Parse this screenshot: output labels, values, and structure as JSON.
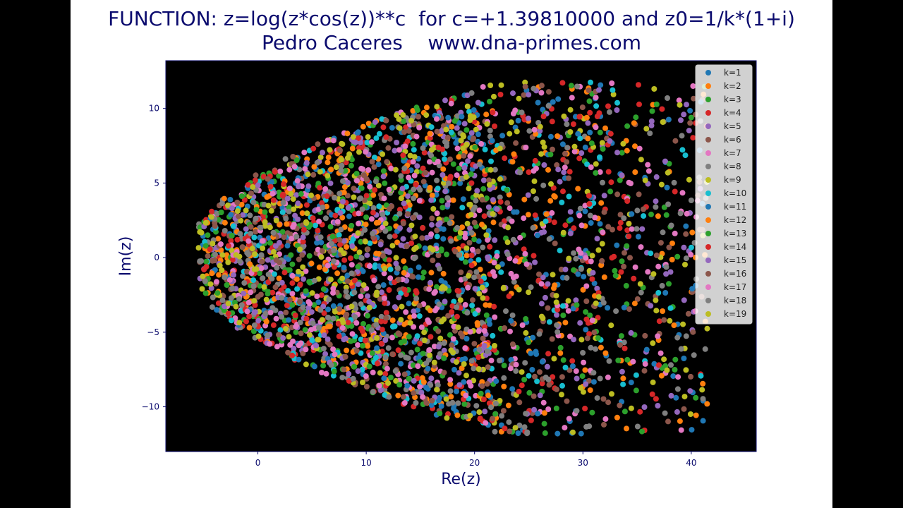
{
  "header": {
    "line1": "FUNCTION: z=log(z*cos(z))**c  for c=+1.39810000 and z0=1/k*(1+i)",
    "line2": "Pedro Caceres    www.dna-primes.com"
  },
  "chart_data": {
    "type": "scatter",
    "xlabel": "Re(z)",
    "ylabel": "Im(z)",
    "xlim": [
      -8.5,
      46
    ],
    "ylim": [
      -13,
      13.2
    ],
    "xticks": [
      0,
      10,
      20,
      30,
      40
    ],
    "yticks": [
      -10,
      -5,
      0,
      5,
      10
    ],
    "background": "#000000",
    "legend_position": "top-right",
    "point_count_per_series": 180,
    "series": [
      {
        "name": "k=1",
        "color": "#1f77b4"
      },
      {
        "name": "k=2",
        "color": "#ff7f0e"
      },
      {
        "name": "k=3",
        "color": "#2ca02c"
      },
      {
        "name": "k=4",
        "color": "#d62728"
      },
      {
        "name": "k=5",
        "color": "#9467bd"
      },
      {
        "name": "k=6",
        "color": "#8c564b"
      },
      {
        "name": "k=7",
        "color": "#e377c2"
      },
      {
        "name": "k=8",
        "color": "#7f7f7f"
      },
      {
        "name": "k=9",
        "color": "#bcbd22"
      },
      {
        "name": "k=10",
        "color": "#17becf"
      },
      {
        "name": "k=11",
        "color": "#1f77b4"
      },
      {
        "name": "k=12",
        "color": "#ff7f0e"
      },
      {
        "name": "k=13",
        "color": "#2ca02c"
      },
      {
        "name": "k=14",
        "color": "#d62728"
      },
      {
        "name": "k=15",
        "color": "#9467bd"
      },
      {
        "name": "k=16",
        "color": "#8c564b"
      },
      {
        "name": "k=17",
        "color": "#e377c2"
      },
      {
        "name": "k=18",
        "color": "#7f7f7f"
      },
      {
        "name": "k=19",
        "color": "#bcbd22"
      }
    ]
  }
}
